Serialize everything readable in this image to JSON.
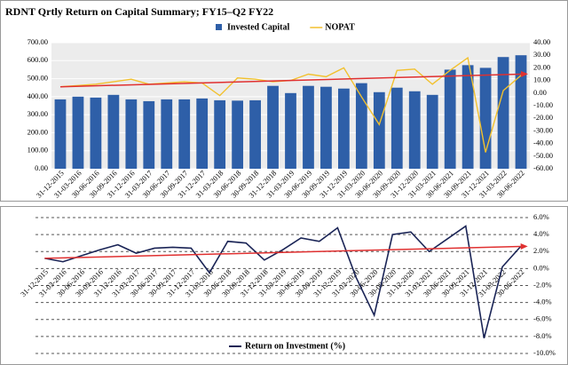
{
  "chart_data": [
    {
      "type": "combo",
      "title": "RDNT Qrtly Return on Capital Summary; FY15–Q2 FY22",
      "categories": [
        "31-12-2015",
        "31-03-2016",
        "30-06-2016",
        "30-09-2016",
        "31-12-2016",
        "31-03-2017",
        "30-06-2017",
        "30-09-2017",
        "31-12-2017",
        "31-03-2018",
        "30-06-2018",
        "30-09-2018",
        "31-12-2018",
        "31-03-2019",
        "30-06-2019",
        "30-09-2019",
        "31-12-2019",
        "31-03-2020",
        "30-06-2020",
        "30-09-2020",
        "31-12-2020",
        "31-03-2021",
        "30-06-2021",
        "30-09-2021",
        "31-12-2021",
        "31-03-2022",
        "30-06-2022"
      ],
      "series": [
        {
          "name": "Invested Capital",
          "color": "#2e5fa8",
          "type": "bar",
          "values": [
            385,
            400,
            395,
            410,
            385,
            375,
            385,
            385,
            390,
            380,
            378,
            380,
            460,
            420,
            460,
            455,
            445,
            475,
            425,
            450,
            430,
            410,
            550,
            575,
            560,
            620,
            630
          ]
        },
        {
          "name": "NOPAT",
          "color": "#f2c12e",
          "type": "line",
          "axis": "y2",
          "values": [
            5,
            6,
            7,
            9,
            11,
            7,
            8,
            9,
            8,
            -2,
            12,
            11,
            9,
            10,
            15,
            13,
            20,
            -3,
            -25,
            18,
            19,
            7,
            18,
            28,
            -47,
            2,
            14
          ]
        }
      ],
      "trend_line": {
        "color": "#e03030",
        "axis": "y2",
        "values": [
          5,
          15
        ]
      },
      "ylim": [
        0,
        700
      ],
      "yticks": [
        {
          "value": 0,
          "label": "0.00"
        },
        {
          "value": 100,
          "label": "100.00"
        },
        {
          "value": 200,
          "label": "200.00"
        },
        {
          "value": 300,
          "label": "300.00"
        },
        {
          "value": 400,
          "label": "400.00"
        },
        {
          "value": 500,
          "label": "500.00"
        },
        {
          "value": 600,
          "label": "600.00"
        },
        {
          "value": 700,
          "label": "700.00"
        }
      ],
      "y2lim": [
        -60,
        40
      ],
      "y2ticks": [
        {
          "value": -60,
          "label": "-60.00"
        },
        {
          "value": -50,
          "label": "-50.00"
        },
        {
          "value": -40,
          "label": "-40.00"
        },
        {
          "value": -30,
          "label": "-30.00"
        },
        {
          "value": -20,
          "label": "-20.00"
        },
        {
          "value": -10,
          "label": "-10.00"
        },
        {
          "value": 0,
          "label": "0.00"
        },
        {
          "value": 10,
          "label": "10.00"
        },
        {
          "value": 20,
          "label": "20.00"
        },
        {
          "value": 30,
          "label": "30.00"
        },
        {
          "value": 40,
          "label": "40.00"
        }
      ],
      "grid": true
    },
    {
      "type": "line",
      "categories": [
        "31-12-2015",
        "31-03-2016",
        "30-06-2016",
        "30-09-2016",
        "31-12-2016",
        "31-03-2017",
        "30-06-2017",
        "30-09-2017",
        "31-12-2017",
        "31-03-2018",
        "30-06-2018",
        "30-09-2018",
        "31-12-2018",
        "31-03-2019",
        "30-06-2019",
        "30-09-2019",
        "31-12-2019",
        "31-03-2020",
        "30-06-2020",
        "30-09-2020",
        "31-12-2020",
        "31-03-2021",
        "30-06-2021",
        "30-09-2021",
        "31-12-2021",
        "31-03-2022",
        "30-06-2022"
      ],
      "series": [
        {
          "name": "Return on Investment (%)",
          "color": "#1a2456",
          "axis": "y2",
          "values": [
            1.2,
            0.8,
            1.5,
            2.2,
            2.8,
            1.8,
            2.4,
            2.5,
            2.4,
            -0.5,
            3.2,
            3.0,
            1.0,
            2.2,
            3.6,
            3.2,
            4.8,
            -1.0,
            -5.5,
            4.0,
            4.3,
            2.0,
            3.5,
            5.0,
            -8.2,
            0.2,
            2.6
          ]
        }
      ],
      "trend_line": {
        "color": "#e03030",
        "axis": "y2",
        "values": [
          1.2,
          2.6
        ]
      },
      "y2lim": [
        -10,
        6
      ],
      "y2ticks": [
        {
          "value": -10,
          "label": "-10.0%"
        },
        {
          "value": -8,
          "label": "-8.0%"
        },
        {
          "value": -6,
          "label": "-6.0%"
        },
        {
          "value": -4,
          "label": "-4.0%"
        },
        {
          "value": -2,
          "label": "-2.0%"
        },
        {
          "value": 0,
          "label": "0.0%"
        },
        {
          "value": 2,
          "label": "2.0%"
        },
        {
          "value": 4,
          "label": "4.0%"
        },
        {
          "value": 6,
          "label": "6.0%"
        }
      ],
      "grid": true
    }
  ]
}
